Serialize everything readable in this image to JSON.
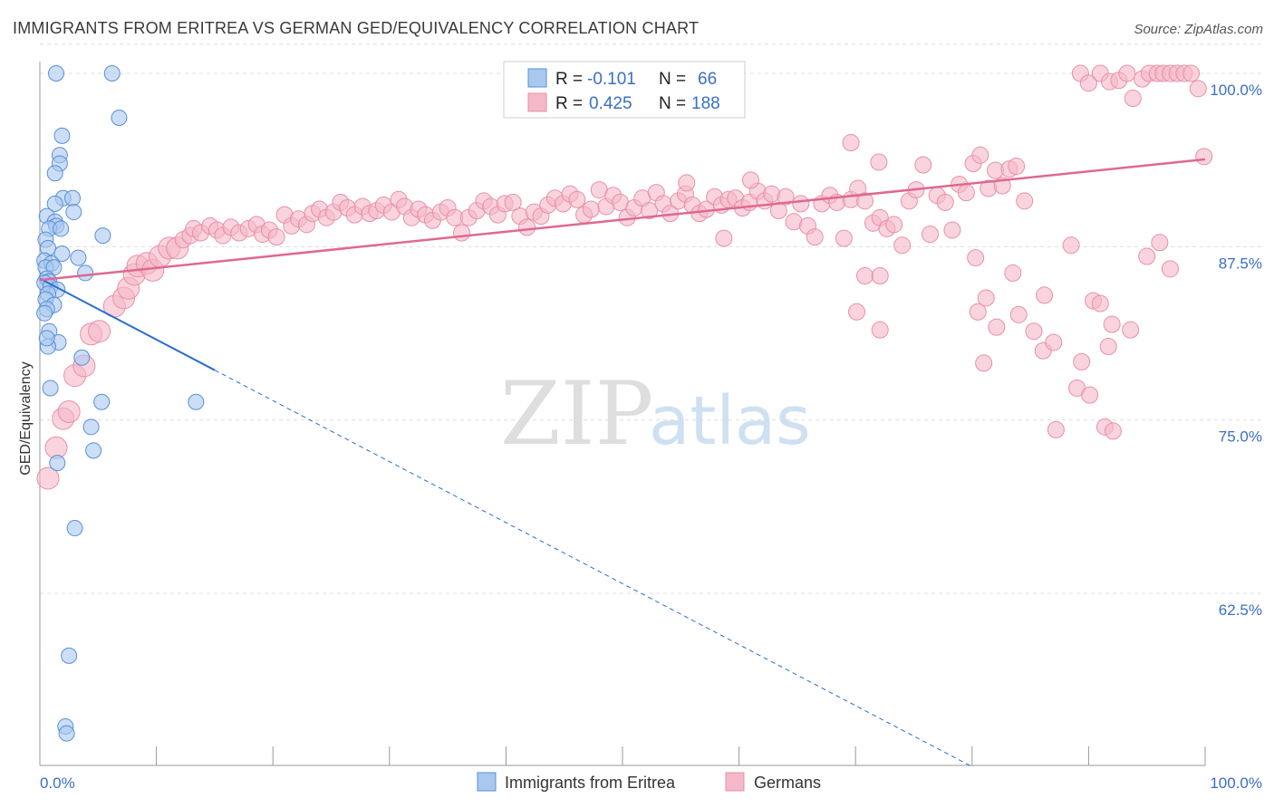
{
  "header": {
    "title": "IMMIGRANTS FROM ERITREA VS GERMAN GED/EQUIVALENCY CORRELATION CHART",
    "source": "Source: ZipAtlas.com"
  },
  "watermark": {
    "zip": "ZIP",
    "atlas": "atlas"
  },
  "legend": {
    "r_label": "R =",
    "n_label": "N =",
    "rows": [
      {
        "r": "-0.101",
        "n": "66",
        "color": "#a8c8f0"
      },
      {
        "r": "0.425",
        "n": "188",
        "color": "#f5b8c8"
      }
    ]
  },
  "colors": {
    "blue_fill": "#a8c8f0",
    "blue_stroke": "#5a8fd8",
    "blue_line": "#2a6dd2",
    "pink_fill": "#f5b8c8",
    "pink_stroke": "#e890a8",
    "pink_line": "#e06890",
    "grid": "#dddddd",
    "axis_text": "#3a6fc4"
  },
  "chart_data": {
    "type": "scatter",
    "title": "IMMIGRANTS FROM ERITREA VS GERMAN GED/EQUIVALENCY CORRELATION CHART",
    "xlabel": "",
    "ylabel": "GED/Equivalency",
    "xlim": [
      0,
      100
    ],
    "ylim": [
      50,
      102.5
    ],
    "x_tick_labels": [
      "0.0%",
      "100.0%"
    ],
    "y_ticks": [
      62.5,
      75.0,
      87.5,
      100.0
    ],
    "y_tick_labels": [
      "62.5%",
      "75.0%",
      "87.5%",
      "100.0%"
    ],
    "series": [
      {
        "name": "Immigrants from Eritrea",
        "r": -0.101,
        "n": 66,
        "trend": {
          "x0": 0,
          "y0": 85.2,
          "x1": 15,
          "y1": 78.6,
          "dash_to_x": 80,
          "dash_to_y": 50.0
        },
        "points": [
          [
            1.4,
            100
          ],
          [
            6.2,
            100
          ],
          [
            6.8,
            96.8
          ],
          [
            1.9,
            95.5
          ],
          [
            1.7,
            94.1
          ],
          [
            1.7,
            93.5
          ],
          [
            1.3,
            92.8
          ],
          [
            2.0,
            91.0
          ],
          [
            1.3,
            90.6
          ],
          [
            2.8,
            91.0
          ],
          [
            2.9,
            90.0
          ],
          [
            0.6,
            89.7
          ],
          [
            1.3,
            89.3
          ],
          [
            1.4,
            89.0
          ],
          [
            0.8,
            88.8
          ],
          [
            1.8,
            88.8
          ],
          [
            5.4,
            88.3
          ],
          [
            0.5,
            88.0
          ],
          [
            0.7,
            87.4
          ],
          [
            1.9,
            87.0
          ],
          [
            3.3,
            86.7
          ],
          [
            0.4,
            86.5
          ],
          [
            1.0,
            86.3
          ],
          [
            0.5,
            86.0
          ],
          [
            1.2,
            86.0
          ],
          [
            3.9,
            85.6
          ],
          [
            0.6,
            85.2
          ],
          [
            0.8,
            85.0
          ],
          [
            0.4,
            84.9
          ],
          [
            0.9,
            84.6
          ],
          [
            1.5,
            84.4
          ],
          [
            0.7,
            84.1
          ],
          [
            0.5,
            83.7
          ],
          [
            1.2,
            83.3
          ],
          [
            0.6,
            83.0
          ],
          [
            0.4,
            82.7
          ],
          [
            0.8,
            81.4
          ],
          [
            1.6,
            80.6
          ],
          [
            0.7,
            80.3
          ],
          [
            0.6,
            80.9
          ],
          [
            3.6,
            79.5
          ],
          [
            0.9,
            77.3
          ],
          [
            5.3,
            76.3
          ],
          [
            13.4,
            76.3
          ],
          [
            4.4,
            74.5
          ],
          [
            4.6,
            72.8
          ],
          [
            1.5,
            71.9
          ],
          [
            3.0,
            67.2
          ],
          [
            2.5,
            58.0
          ],
          [
            2.2,
            52.9
          ],
          [
            2.3,
            52.4
          ]
        ]
      },
      {
        "name": "Germans",
        "r": 0.425,
        "n": 188,
        "trend": {
          "x0": 0,
          "y0": 85.1,
          "x1": 100,
          "y1": 93.8
        },
        "points": [
          [
            0.7,
            70.8
          ],
          [
            1.4,
            73.0
          ],
          [
            2.0,
            75.1
          ],
          [
            2.5,
            75.6
          ],
          [
            3.0,
            78.2
          ],
          [
            3.8,
            78.9
          ],
          [
            4.4,
            81.2
          ],
          [
            5.1,
            81.4
          ],
          [
            6.4,
            83.2
          ],
          [
            7.2,
            83.8
          ],
          [
            7.6,
            84.5
          ],
          [
            8.1,
            85.5
          ],
          [
            8.4,
            86.1
          ],
          [
            9.2,
            86.3
          ],
          [
            9.7,
            85.8
          ],
          [
            10.3,
            86.8
          ],
          [
            11.1,
            87.4
          ],
          [
            11.8,
            87.4
          ],
          [
            12.3,
            88.0
          ],
          [
            12.9,
            88.3
          ],
          [
            13.2,
            88.8
          ],
          [
            13.8,
            88.5
          ],
          [
            14.6,
            89.0
          ],
          [
            15.2,
            88.7
          ],
          [
            15.7,
            88.3
          ],
          [
            16.4,
            88.9
          ],
          [
            17.1,
            88.5
          ],
          [
            17.9,
            88.8
          ],
          [
            18.6,
            89.1
          ],
          [
            19.1,
            88.4
          ],
          [
            19.7,
            88.7
          ],
          [
            20.3,
            88.2
          ],
          [
            21.0,
            89.8
          ],
          [
            21.6,
            89.0
          ],
          [
            22.2,
            89.5
          ],
          [
            22.9,
            89.1
          ],
          [
            23.4,
            89.9
          ],
          [
            24.0,
            90.2
          ],
          [
            24.6,
            89.6
          ],
          [
            25.2,
            90.0
          ],
          [
            25.8,
            90.7
          ],
          [
            26.4,
            90.3
          ],
          [
            27.0,
            89.8
          ],
          [
            27.7,
            90.4
          ],
          [
            28.3,
            89.9
          ],
          [
            28.9,
            90.1
          ],
          [
            29.5,
            90.5
          ],
          [
            30.2,
            90.0
          ],
          [
            30.8,
            90.9
          ],
          [
            31.3,
            90.4
          ],
          [
            31.9,
            89.6
          ],
          [
            32.5,
            90.2
          ],
          [
            33.1,
            89.8
          ],
          [
            33.7,
            89.4
          ],
          [
            34.4,
            90.0
          ],
          [
            35.0,
            90.3
          ],
          [
            35.6,
            89.6
          ],
          [
            36.2,
            88.5
          ],
          [
            36.8,
            89.6
          ],
          [
            37.5,
            90.1
          ],
          [
            38.1,
            90.8
          ],
          [
            38.7,
            90.4
          ],
          [
            39.3,
            89.8
          ],
          [
            39.9,
            90.6
          ],
          [
            40.6,
            90.7
          ],
          [
            41.2,
            89.7
          ],
          [
            41.8,
            88.9
          ],
          [
            42.4,
            90.0
          ],
          [
            43.0,
            89.7
          ],
          [
            43.6,
            90.5
          ],
          [
            44.2,
            91.0
          ],
          [
            44.9,
            90.6
          ],
          [
            45.5,
            91.3
          ],
          [
            46.1,
            90.9
          ],
          [
            46.7,
            89.8
          ],
          [
            47.3,
            90.2
          ],
          [
            48.0,
            91.6
          ],
          [
            48.6,
            90.4
          ],
          [
            49.2,
            91.2
          ],
          [
            49.8,
            90.7
          ],
          [
            50.4,
            89.6
          ],
          [
            51.0,
            90.3
          ],
          [
            51.7,
            91.0
          ],
          [
            52.3,
            90.1
          ],
          [
            52.9,
            91.4
          ],
          [
            53.5,
            90.6
          ],
          [
            54.1,
            89.9
          ],
          [
            54.8,
            90.8
          ],
          [
            55.4,
            91.3
          ],
          [
            56.0,
            90.5
          ],
          [
            56.6,
            89.9
          ],
          [
            57.2,
            90.2
          ],
          [
            57.9,
            91.1
          ],
          [
            58.5,
            90.5
          ],
          [
            59.1,
            90.9
          ],
          [
            59.7,
            91.0
          ],
          [
            60.3,
            90.3
          ],
          [
            60.9,
            90.7
          ],
          [
            61.6,
            91.5
          ],
          [
            62.2,
            90.8
          ],
          [
            62.8,
            91.3
          ],
          [
            63.4,
            90.1
          ],
          [
            64.0,
            91.1
          ],
          [
            64.7,
            89.3
          ],
          [
            65.3,
            90.6
          ],
          [
            65.9,
            89.0
          ],
          [
            66.5,
            88.2
          ],
          [
            67.1,
            90.6
          ],
          [
            67.8,
            91.2
          ],
          [
            68.4,
            90.7
          ],
          [
            69.0,
            88.1
          ],
          [
            69.6,
            90.9
          ],
          [
            70.2,
            91.7
          ],
          [
            70.8,
            90.8
          ],
          [
            71.5,
            89.2
          ],
          [
            72.1,
            89.6
          ],
          [
            72.7,
            88.8
          ],
          [
            73.3,
            89.1
          ],
          [
            74.0,
            87.6
          ],
          [
            74.6,
            90.8
          ],
          [
            75.2,
            91.6
          ],
          [
            75.8,
            93.4
          ],
          [
            76.4,
            88.4
          ],
          [
            77.0,
            91.2
          ],
          [
            77.7,
            90.7
          ],
          [
            78.3,
            88.7
          ],
          [
            78.9,
            92.0
          ],
          [
            79.5,
            91.4
          ],
          [
            80.1,
            93.5
          ],
          [
            80.7,
            94.1
          ],
          [
            81.4,
            91.7
          ],
          [
            82.0,
            93.0
          ],
          [
            82.6,
            91.9
          ],
          [
            83.2,
            93.1
          ],
          [
            83.8,
            93.3
          ],
          [
            84.5,
            90.8
          ],
          [
            55.5,
            92.1
          ],
          [
            61.0,
            92.3
          ],
          [
            69.6,
            95.0
          ],
          [
            72.0,
            93.6
          ],
          [
            58.7,
            88.1
          ],
          [
            70.8,
            85.4
          ],
          [
            72.1,
            85.4
          ],
          [
            70.1,
            82.8
          ],
          [
            72.1,
            81.5
          ],
          [
            80.3,
            86.7
          ],
          [
            83.5,
            85.6
          ],
          [
            81.2,
            83.8
          ],
          [
            82.1,
            81.7
          ],
          [
            80.5,
            82.8
          ],
          [
            81.0,
            79.1
          ],
          [
            84.0,
            82.6
          ],
          [
            86.2,
            84.0
          ],
          [
            88.5,
            87.6
          ],
          [
            90.4,
            83.6
          ],
          [
            91.0,
            83.4
          ],
          [
            91.7,
            80.3
          ],
          [
            92.0,
            81.9
          ],
          [
            93.6,
            81.5
          ],
          [
            95.0,
            86.8
          ],
          [
            96.1,
            87.8
          ],
          [
            97.0,
            85.9
          ],
          [
            91.4,
            74.5
          ],
          [
            92.1,
            74.2
          ],
          [
            87.2,
            74.3
          ],
          [
            89.0,
            77.3
          ],
          [
            90.1,
            76.8
          ],
          [
            85.3,
            81.4
          ],
          [
            86.1,
            80.0
          ],
          [
            87.0,
            80.6
          ],
          [
            89.4,
            79.2
          ],
          [
            89.3,
            100
          ],
          [
            90.0,
            99.3
          ],
          [
            91.0,
            100
          ],
          [
            91.8,
            99.4
          ],
          [
            92.6,
            99.5
          ],
          [
            93.3,
            100
          ],
          [
            93.8,
            98.2
          ],
          [
            94.6,
            99.6
          ],
          [
            95.2,
            100
          ],
          [
            95.9,
            100
          ],
          [
            96.4,
            100
          ],
          [
            97.0,
            100
          ],
          [
            97.6,
            100
          ],
          [
            98.2,
            100
          ],
          [
            98.8,
            100
          ],
          [
            99.4,
            98.9
          ],
          [
            99.9,
            94.0
          ]
        ]
      }
    ]
  },
  "bottom_legend": {
    "items": [
      {
        "label": "Immigrants from Eritrea",
        "color": "#a8c8f0"
      },
      {
        "label": "Germans",
        "color": "#f5b8c8"
      }
    ]
  }
}
